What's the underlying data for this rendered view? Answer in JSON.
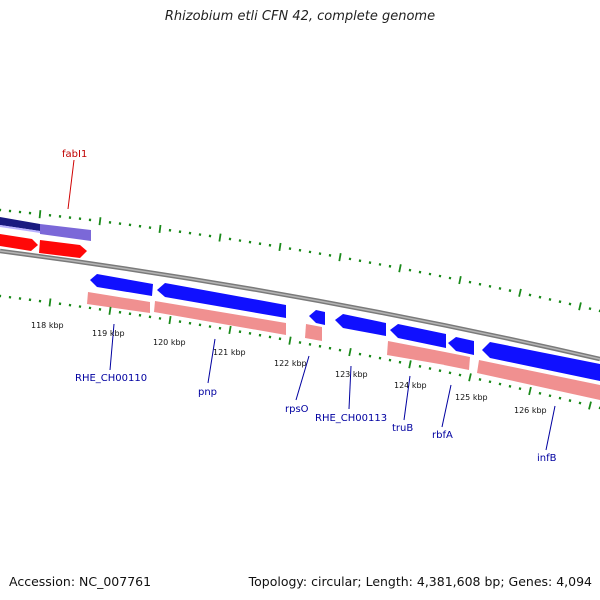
{
  "title": "Rhizobium etli CFN 42, complete genome",
  "footer": {
    "accession": "Accession: NC_007761",
    "summary": "Topology: circular; Length: 4,381,608 bp; Genes: 4,094"
  },
  "colors": {
    "forward_gene": "#1010ff",
    "reverse_gene": "#ff0808",
    "forward_cds": "#7b68d8",
    "reverse_cds": "#f09090",
    "backbone": "#7a7a7a",
    "ticks": "#1a8a1a",
    "forward_label": "#0000a0",
    "reverse_label": "#c00000"
  },
  "tick_labels": [
    "118 kbp",
    "119 kbp",
    "120 kbp",
    "121 kbp",
    "122 kbp",
    "123 kbp",
    "124 kbp",
    "125 kbp",
    "126 kbp"
  ],
  "gene_labels": [
    {
      "text": "fabI1",
      "strand": "reverse"
    },
    {
      "text": "RHE_CH00110",
      "strand": "forward"
    },
    {
      "text": "pnp",
      "strand": "forward"
    },
    {
      "text": "rpsO",
      "strand": "forward"
    },
    {
      "text": "RHE_CH00113",
      "strand": "forward"
    },
    {
      "text": "truB",
      "strand": "forward"
    },
    {
      "text": "rbfA",
      "strand": "forward"
    },
    {
      "text": "infB",
      "strand": "forward"
    }
  ]
}
